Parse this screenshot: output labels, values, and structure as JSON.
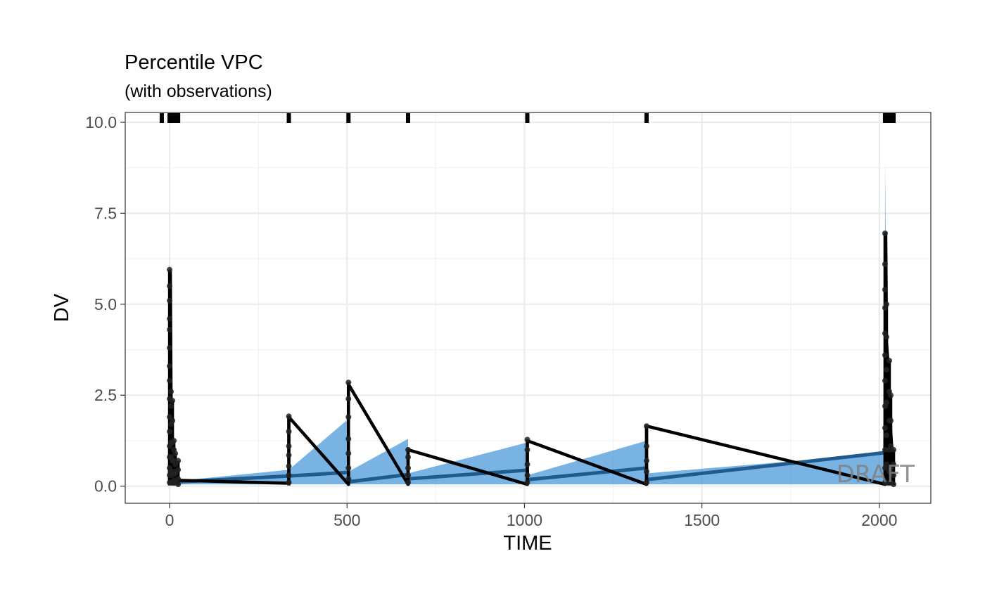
{
  "colors": {
    "ci_band": "#3a8fd6",
    "sim_median": "#1f5b8c",
    "observed": "#000000",
    "grid_major": "#ebebeb",
    "grid_minor": "#f2f2f2",
    "panel_border": "#333333"
  },
  "chart_data": {
    "type": "line",
    "title": "Percentile VPC",
    "subtitle": "(with observations)",
    "xlabel": "TIME",
    "ylabel": "DV",
    "xlim": [
      -125,
      2145
    ],
    "ylim": [
      -0.47,
      10.27
    ],
    "x_ticks": [
      0,
      500,
      1000,
      1500,
      2000
    ],
    "y_ticks": [
      0,
      2.5,
      5,
      7.5,
      10
    ],
    "x_tick_labels": [
      "0",
      "500",
      "1000",
      "1500",
      "2000"
    ],
    "y_tick_labels": [
      "0.0",
      "2.5",
      "5.0",
      "7.5",
      "10.0"
    ],
    "grid": true,
    "watermark": "DRAFT",
    "bin_rug_x": [
      -22,
      0,
      4,
      8,
      12,
      16,
      20,
      24,
      336,
      504,
      672,
      1008,
      1344,
      2016,
      2020,
      2024,
      2028,
      2032,
      2036,
      2040
    ],
    "ci_band": {
      "x": [
        0,
        0,
        4,
        8,
        12,
        16,
        24,
        336,
        504,
        504,
        672,
        672,
        1008,
        1008,
        1344,
        1344,
        2016,
        2016,
        2020,
        2024,
        2028,
        2032,
        2040
      ],
      "low": [
        0.05,
        0.05,
        0.05,
        0.05,
        0.05,
        0.05,
        0.05,
        0.05,
        0.05,
        0.05,
        0.05,
        0.05,
        0.05,
        0.05,
        0.05,
        0.05,
        0.05,
        0.05,
        0.05,
        0.05,
        0.05,
        0.05,
        0.05
      ],
      "high": [
        0.2,
        5.0,
        2.2,
        1.0,
        0.6,
        0.4,
        0.15,
        0.45,
        1.85,
        0.4,
        1.3,
        0.35,
        1.2,
        0.3,
        1.25,
        0.35,
        0.9,
        9.0,
        5.0,
        3.0,
        2.0,
        1.4,
        0.95
      ]
    },
    "series": [
      {
        "name": "",
        "x": [
          0,
          2,
          4,
          6,
          8,
          12,
          16,
          24,
          336,
          504,
          504,
          672,
          672,
          1008,
          1008,
          1344,
          1344,
          2016,
          2018,
          2020,
          2024,
          2028,
          2032,
          2036,
          2040
        ],
        "values": [
          0.1,
          3.3,
          1.4,
          0.8,
          0.5,
          0.3,
          0.2,
          0.12,
          0.28,
          0.38,
          0.12,
          0.32,
          0.2,
          0.44,
          0.18,
          0.5,
          0.18,
          0.92,
          6.3,
          3.2,
          2.1,
          1.6,
          1.2,
          1.0,
          0.9
        ]
      }
    ],
    "observed": {
      "median_x": [
        0,
        2,
        4,
        6,
        8,
        12,
        16,
        20,
        24,
        336,
        336,
        504,
        504,
        672,
        672,
        1008,
        1008,
        1344,
        1344,
        2016,
        2018,
        2020,
        2024,
        2028,
        2032,
        2036,
        2040
      ],
      "median_y": [
        0.05,
        5.9,
        2.5,
        1.2,
        0.7,
        0.4,
        0.25,
        0.18,
        0.16,
        0.08,
        1.9,
        0.05,
        2.8,
        0.05,
        1.0,
        0.05,
        1.25,
        0.05,
        1.65,
        0.05,
        6.95,
        4.0,
        3.4,
        2.4,
        1.5,
        0.9,
        0.05
      ],
      "columns": [
        {
          "x": 0,
          "y_min": 0.02,
          "y_max": 5.95,
          "points": [
            5.95,
            5.5,
            5.1,
            4.6,
            4.3,
            3.8,
            3.3,
            2.9,
            2.4,
            1.9,
            1.5,
            1.1,
            0.8,
            0.5,
            0.3,
            0.1
          ]
        },
        {
          "x": 4,
          "y_min": 0.02,
          "y_max": 2.6,
          "points": [
            2.6,
            2.2,
            1.7,
            1.2,
            0.8,
            0.4,
            0.1
          ]
        },
        {
          "x": 8,
          "y_min": 0.02,
          "y_max": 2.35,
          "points": [
            2.35,
            1.8,
            1.2,
            0.7,
            0.3,
            0.1
          ]
        },
        {
          "x": 12,
          "y_min": 0.02,
          "y_max": 1.25,
          "points": [
            1.25,
            1.0,
            0.7,
            0.4,
            0.15
          ]
        },
        {
          "x": 16,
          "y_min": 0.02,
          "y_max": 0.9,
          "points": [
            0.9,
            0.6,
            0.35,
            0.1
          ]
        },
        {
          "x": 24,
          "y_min": 0.02,
          "y_max": 0.7,
          "points": [
            0.7,
            0.45,
            0.2,
            0.05
          ]
        },
        {
          "x": 336,
          "y_min": 0.02,
          "y_max": 1.92,
          "points": [
            1.92,
            1.5,
            1.1,
            0.85,
            0.55,
            0.3,
            0.1
          ]
        },
        {
          "x": 504,
          "y_min": 0.02,
          "y_max": 2.85,
          "points": [
            2.85,
            2.4,
            1.9,
            1.3,
            0.9,
            0.5,
            0.2
          ]
        },
        {
          "x": 672,
          "y_min": 0.02,
          "y_max": 1.0,
          "points": [
            1.0,
            0.8,
            0.5,
            0.3,
            0.1
          ]
        },
        {
          "x": 1008,
          "y_min": 0.02,
          "y_max": 1.28,
          "points": [
            1.28,
            1.0,
            0.6,
            0.3,
            0.1
          ]
        },
        {
          "x": 1344,
          "y_min": 0.02,
          "y_max": 1.65,
          "points": [
            1.65,
            1.1,
            0.7,
            0.4,
            0.1
          ]
        },
        {
          "x": 2016,
          "y_min": 0.02,
          "y_max": 6.95,
          "points": [
            6.95,
            6.1,
            5.4,
            4.9,
            4.2,
            3.6,
            2.9,
            2.2,
            1.6,
            1.0,
            0.5,
            0.1
          ]
        },
        {
          "x": 2020,
          "y_min": 0.02,
          "y_max": 5.0,
          "points": [
            5.0,
            4.1,
            3.2,
            2.3,
            1.4,
            0.6,
            0.1
          ]
        },
        {
          "x": 2028,
          "y_min": 0.02,
          "y_max": 3.45,
          "points": [
            3.45,
            2.6,
            1.8,
            1.0,
            0.4
          ]
        },
        {
          "x": 2032,
          "y_min": 0.02,
          "y_max": 2.5,
          "points": [
            2.5,
            1.8,
            1.1,
            0.5,
            0.1
          ]
        },
        {
          "x": 2040,
          "y_min": 0.02,
          "y_max": 1.0,
          "points": [
            1.0,
            0.6,
            0.3,
            0.05
          ]
        }
      ]
    }
  }
}
